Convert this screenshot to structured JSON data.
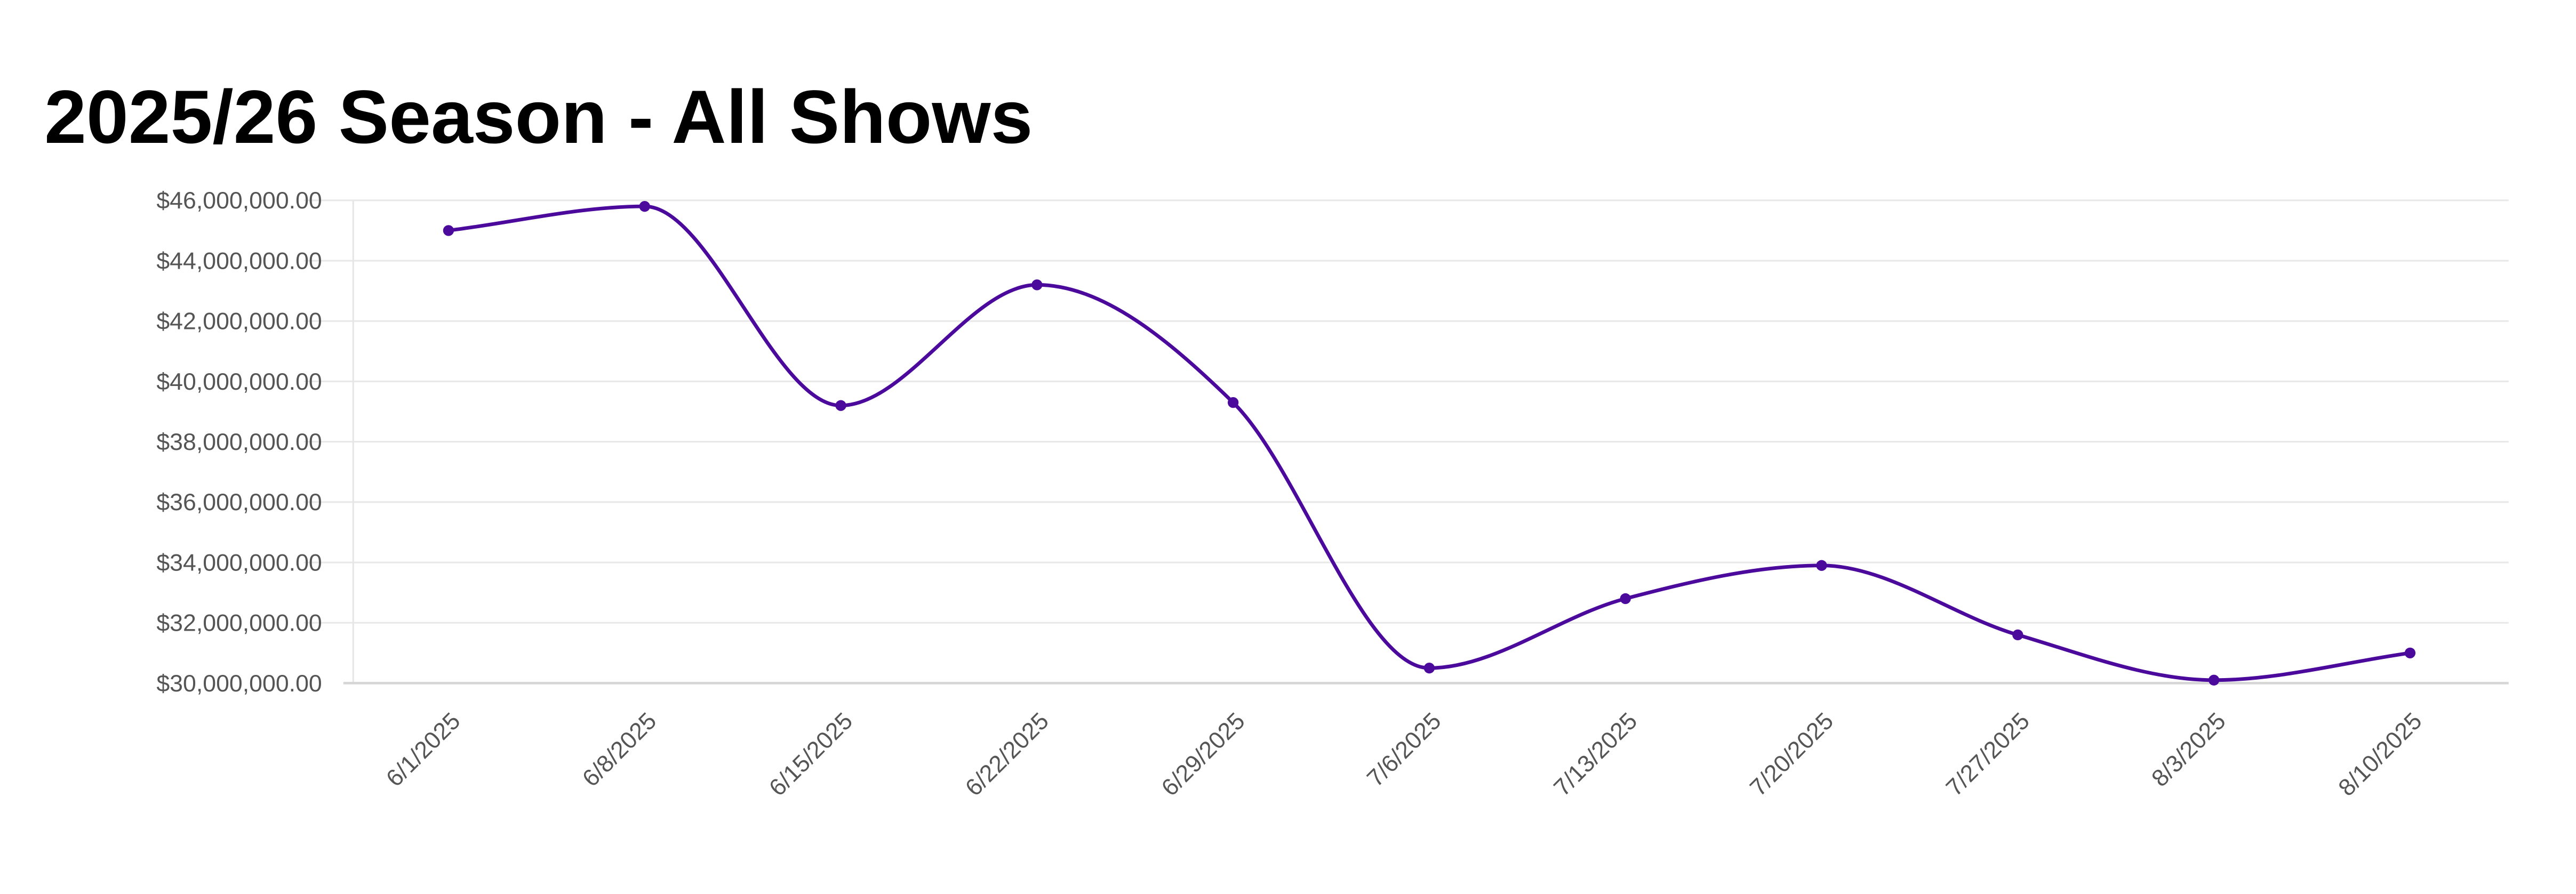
{
  "chart_data": {
    "type": "line",
    "title": "2025/26 Season - All Shows",
    "xlabel": "",
    "ylabel": "",
    "categories": [
      "6/1/2025",
      "6/8/2025",
      "6/15/2025",
      "6/22/2025",
      "6/29/2025",
      "7/6/2025",
      "7/13/2025",
      "7/20/2025",
      "7/27/2025",
      "8/3/2025",
      "8/10/2025"
    ],
    "series": [
      {
        "name": "All Shows",
        "color": "#4b0a9c",
        "values": [
          45000000,
          45800000,
          39200000,
          43200000,
          39300000,
          30500000,
          32800000,
          33900000,
          31600000,
          30100000,
          31000000
        ]
      }
    ],
    "ylim": [
      30000000,
      46000000
    ],
    "yticks": [
      30000000,
      32000000,
      34000000,
      36000000,
      38000000,
      40000000,
      42000000,
      44000000,
      46000000
    ],
    "ytick_labels": [
      "$30,000,000.00",
      "$32,000,000.00",
      "$34,000,000.00",
      "$36,000,000.00",
      "$38,000,000.00",
      "$40,000,000.00",
      "$42,000,000.00",
      "$44,000,000.00",
      "$46,000,000.00"
    ],
    "grid": true,
    "legend": "none"
  }
}
